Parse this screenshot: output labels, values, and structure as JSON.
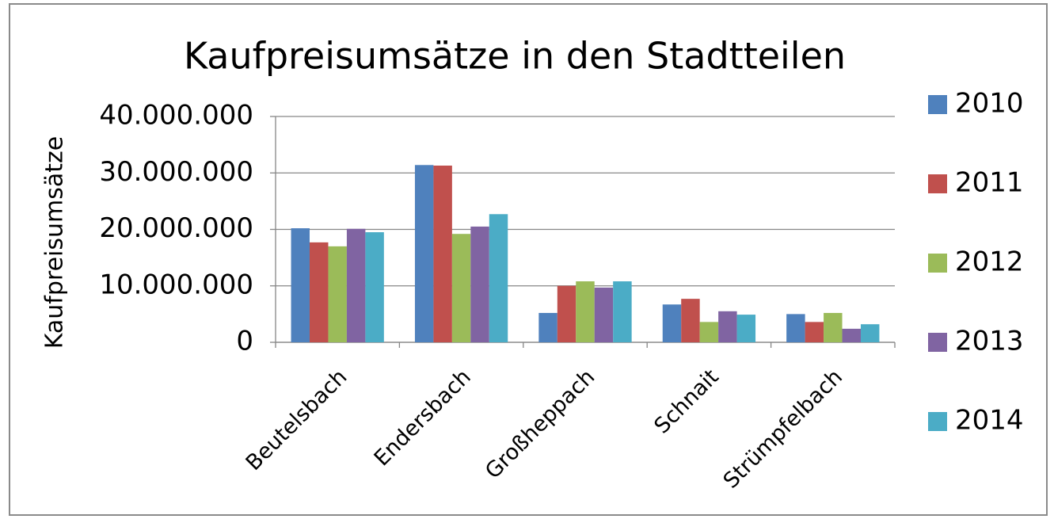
{
  "chart_data": {
    "type": "bar",
    "title": "Kaufpreisumsätze in den Stadtteilen",
    "y_label": "Kaufpreisumsätze",
    "categories": [
      "Beutelsbach",
      "Endersbach",
      "Großheppach",
      "Schnait",
      "Strümpfelbach"
    ],
    "series": [
      {
        "name": "2010",
        "color": "#4f81bd",
        "values": [
          20200000,
          31400000,
          5200000,
          6700000,
          5000000
        ]
      },
      {
        "name": "2011",
        "color": "#c0504d",
        "values": [
          17700000,
          31300000,
          10000000,
          7700000,
          3600000
        ]
      },
      {
        "name": "2012",
        "color": "#9bbb59",
        "values": [
          17000000,
          19200000,
          10800000,
          3600000,
          5200000
        ]
      },
      {
        "name": "2013",
        "color": "#8064a2",
        "values": [
          20100000,
          20500000,
          9700000,
          5500000,
          2400000
        ]
      },
      {
        "name": "2014",
        "color": "#4bacc6",
        "values": [
          19500000,
          22700000,
          10800000,
          4900000,
          3200000
        ]
      }
    ],
    "ylim": [
      0,
      40000000
    ],
    "yticks": [
      0,
      {
        "value": 10000000,
        "label": "10.000.000"
      },
      {
        "value": 20000000,
        "label": "20.000.000"
      },
      {
        "value": 30000000,
        "label": "30.000.000"
      },
      {
        "value": 40000000,
        "label": "40.000.000"
      }
    ],
    "grid": true,
    "legend": "right"
  }
}
